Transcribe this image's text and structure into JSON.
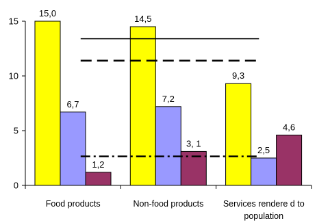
{
  "chart_data": {
    "type": "bar",
    "title": "",
    "xlabel": "",
    "ylabel": "",
    "ylim": [
      0,
      15
    ],
    "yticks": [
      0,
      5,
      10,
      15
    ],
    "ytick_labels": [
      "0",
      "5",
      "10",
      "15"
    ],
    "grid": false,
    "categories": [
      [
        "Food products"
      ],
      [
        "Non-food products"
      ],
      [
        "Services rendere d to",
        "population"
      ]
    ],
    "series": [
      {
        "color": "#ffff00",
        "values": [
          15.0,
          14.5,
          9.3
        ],
        "labels": [
          "15,0",
          "14,5",
          "9,3"
        ]
      },
      {
        "color": "#9999ff",
        "values": [
          6.7,
          7.2,
          2.5
        ],
        "labels": [
          "6,7",
          "7,2",
          "2,5"
        ]
      },
      {
        "color": "#993366",
        "values": [
          1.2,
          3.1,
          4.6
        ],
        "labels": [
          "1,2",
          "3, 1",
          "4,6"
        ]
      }
    ],
    "reference_lines": [
      {
        "style": "solid",
        "y": 13.4,
        "x_from": 0.58,
        "x_to": 2.45
      },
      {
        "style": "dashed",
        "y": 11.4,
        "x_from": 0.58,
        "x_to": 2.45
      },
      {
        "style": "dashdot",
        "y": 2.65,
        "x_from": 0.58,
        "x_to": 2.45
      }
    ]
  }
}
